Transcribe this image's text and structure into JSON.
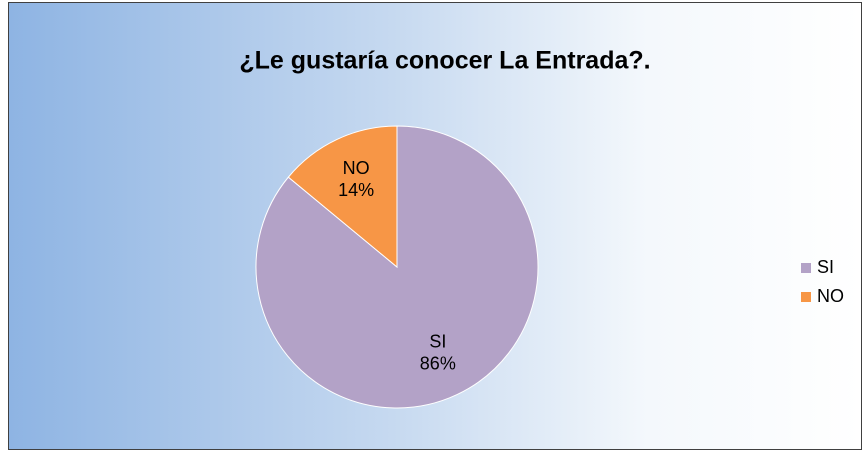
{
  "chart_data": {
    "type": "pie",
    "title": "¿Le gustaría conocer La Entrada?.",
    "categories": [
      "SI",
      "NO"
    ],
    "values": [
      86,
      14
    ],
    "value_labels": [
      "86%",
      "14%"
    ],
    "colors": [
      "#b3a2c7",
      "#f79646"
    ],
    "legend": "right"
  }
}
